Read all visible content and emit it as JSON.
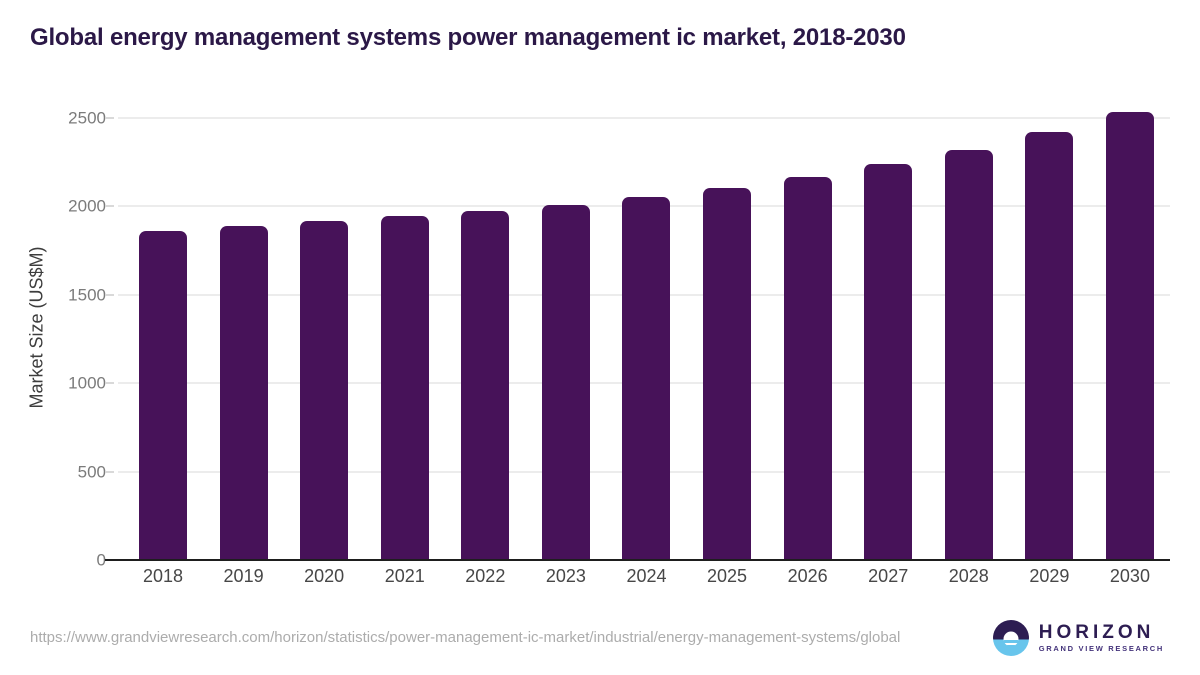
{
  "title": "Global energy management systems power management ic market, 2018-2030",
  "footer": {
    "source_url": "https://www.grandviewresearch.com/horizon/statistics/power-management-ic-market/industrial/energy-management-systems/global",
    "brand_name": "HORIZON",
    "brand_subtitle": "GRAND VIEW RESEARCH"
  },
  "colors": {
    "bar": "#471259",
    "title_text": "#2b1847",
    "axis_text": "#3d3d3d",
    "y_tick_text": "#7b7b7b",
    "x_tick_text": "#474747",
    "gridline": "#ececec",
    "baseline": "#1e1e1e",
    "url_text": "#acacac",
    "logo_purple": "#2d1d52",
    "logo_blue": "#68c5ec"
  },
  "chart_data": {
    "type": "bar",
    "title": "Global energy management systems power management ic market, 2018-2030",
    "categories": [
      "2018",
      "2019",
      "2020",
      "2021",
      "2022",
      "2023",
      "2024",
      "2025",
      "2026",
      "2027",
      "2028",
      "2029",
      "2030"
    ],
    "values": [
      1860,
      1890,
      1920,
      1945,
      1975,
      2010,
      2055,
      2105,
      2165,
      2240,
      2320,
      2420,
      2535
    ],
    "xlabel": "",
    "ylabel": "Market Size (US$M)",
    "yticks": [
      0,
      500,
      1000,
      1500,
      2000,
      2500
    ],
    "ylim": [
      0,
      2635
    ],
    "grid": true,
    "legend": false,
    "bar_color": "#471259"
  }
}
